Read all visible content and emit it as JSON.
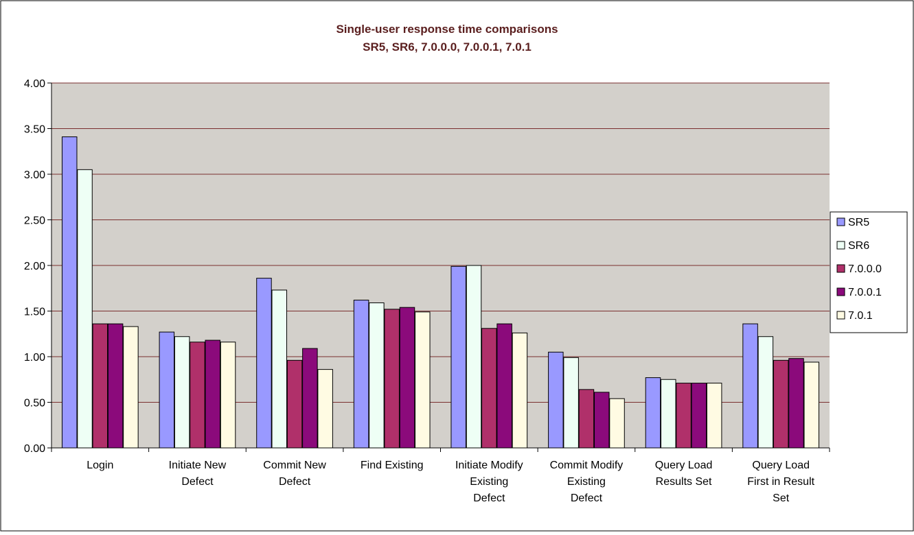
{
  "chart_data": {
    "type": "bar",
    "title": "Single-user response time comparisons",
    "subtitle": "SR5, SR6, 7.0.0.0, 7.0.0.1, 7.0.1",
    "xlabel": "",
    "ylabel": "",
    "ylim": [
      0,
      4
    ],
    "yticks": [
      "0.00",
      "0.50",
      "1.00",
      "1.50",
      "2.00",
      "2.50",
      "3.00",
      "3.50",
      "4.00"
    ],
    "grid": true,
    "legend_position": "right",
    "categories": [
      [
        "Login"
      ],
      [
        "Initiate New",
        "Defect"
      ],
      [
        "Commit New",
        "Defect"
      ],
      [
        "Find Existing"
      ],
      [
        "Initiate Modify",
        "Existing",
        "Defect"
      ],
      [
        "Commit Modify",
        "Existing",
        "Defect"
      ],
      [
        "Query Load",
        "Results Set"
      ],
      [
        "Query Load",
        "First in Result",
        "Set"
      ]
    ],
    "series": [
      {
        "name": "SR5",
        "color": "#9999ff",
        "values": [
          3.41,
          1.27,
          1.86,
          1.62,
          1.99,
          1.05,
          0.77,
          1.36
        ]
      },
      {
        "name": "SR6",
        "color": "#eefff5",
        "values": [
          3.05,
          1.22,
          1.73,
          1.59,
          2.0,
          0.99,
          0.75,
          1.22
        ]
      },
      {
        "name": "7.0.0.0",
        "color": "#b0306a",
        "values": [
          1.36,
          1.16,
          0.96,
          1.52,
          1.31,
          0.64,
          0.71,
          0.96
        ]
      },
      {
        "name": "7.0.0.1",
        "color": "#8b0a7b",
        "values": [
          1.36,
          1.18,
          1.09,
          1.54,
          1.36,
          0.61,
          0.71,
          0.98
        ]
      },
      {
        "name": "7.0.1",
        "color": "#fffbe3",
        "values": [
          1.33,
          1.16,
          0.86,
          1.49,
          1.26,
          0.54,
          0.71,
          0.94
        ]
      }
    ],
    "colors": {
      "plot_background": "#d3d0cb",
      "gridline": "#7a2e2e",
      "title_text": "#5a1e1e"
    }
  }
}
